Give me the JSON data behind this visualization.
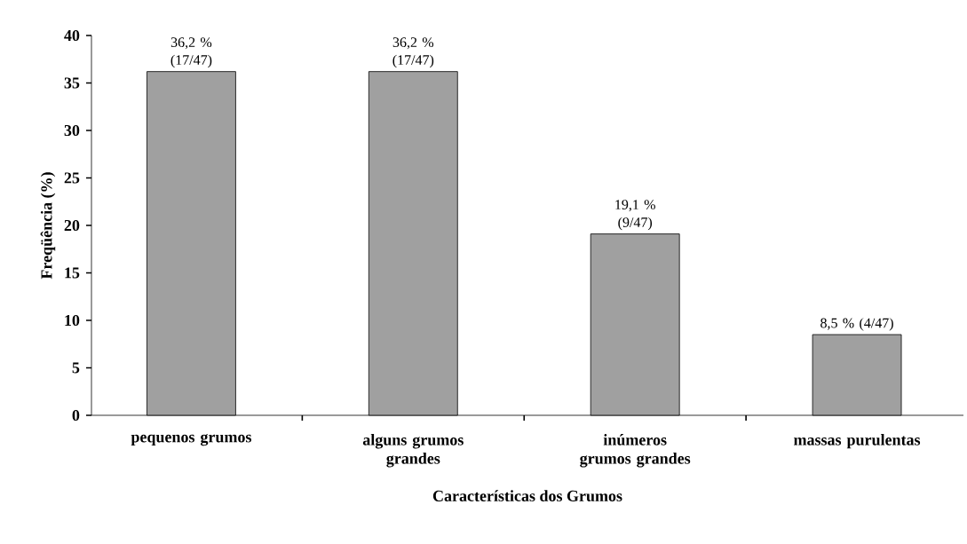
{
  "chart_data": {
    "type": "bar",
    "xlabel": "Características dos Grumos",
    "ylabel": "Freqüência (%)",
    "categories": [
      "pequenos grumos",
      "alguns grumos grandes",
      "inúmeros grumos grandes",
      "massas purulentas"
    ],
    "values": [
      36.2,
      36.2,
      19.1,
      8.5
    ],
    "value_labels": [
      "36,2 % (17/47)",
      "36,2 % (17/47)",
      "19,1 % (9/47)",
      "8,5 % (4/47)"
    ],
    "color": "#a0a0a0",
    "ylim": [
      0,
      40
    ],
    "yticks": [
      0,
      5,
      10,
      15,
      20,
      25,
      30,
      35,
      40
    ]
  }
}
